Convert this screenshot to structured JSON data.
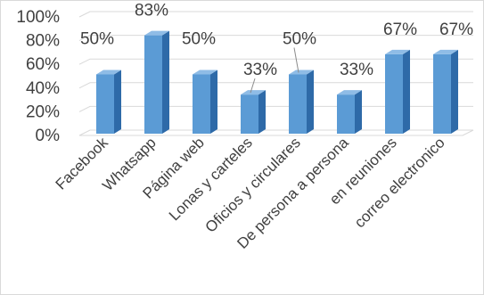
{
  "chart_data": {
    "type": "bar",
    "style": "3d-column",
    "categories": [
      "Facebook",
      "Whatsapp",
      "Página web",
      "Lonas y carteles",
      "Oficios y circulares",
      "De persona a persona",
      "en reuniones",
      "correo electronico"
    ],
    "values": [
      50,
      83,
      50,
      33,
      50,
      33,
      67,
      67
    ],
    "data_labels": [
      "50%",
      "83%",
      "50%",
      "33%",
      "50%",
      "33%",
      "67%",
      "67%"
    ],
    "y_ticks": [
      "0%",
      "20%",
      "40%",
      "60%",
      "80%",
      "100%"
    ],
    "ylim": [
      0,
      100
    ],
    "grid": true,
    "legend": "none",
    "colors": {
      "bar_front": "#5b9bd5",
      "bar_side": "#2e6aa8",
      "bar_top": "#8fbce6",
      "grid": "#d9d9d9",
      "text": "#404040"
    }
  }
}
